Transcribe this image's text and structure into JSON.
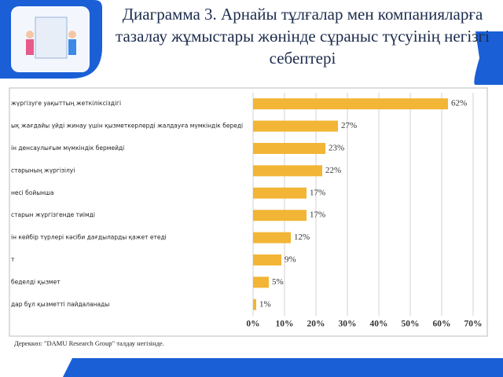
{
  "chart_data": {
    "type": "bar",
    "orientation": "horizontal",
    "title": [
      "Диаграмма 3. Арнайы тұлғалар мен компанияларға",
      "тазалау жұмыстары жөнінде сұраныс түсуінің негізгі",
      "себептері"
    ],
    "categories": [
      "жүргізуге уақыттың жеткіліксіздігі",
      "ық жағдайы үйді жинау үшін қызметкерлерді жалдауға мүмкіндік береді",
      "ін денсаулығым мүмкіндік бермейді",
      "старының жүргізілуі",
      "несі бойынша",
      "старын жүргізгенде тиімді",
      "ін кейбір түрлері кәсіби дағдыларды қажет етеді",
      "т",
      "беделді қызмет",
      "дар бұл қызметті пайдаланады"
    ],
    "values": [
      62,
      27,
      23,
      22,
      17,
      17,
      12,
      9,
      5,
      1
    ],
    "value_labels": [
      "62%",
      "27%",
      "23%",
      "22%",
      "17%",
      "17%",
      "12%",
      "9%",
      "5%",
      "1%"
    ],
    "color": "#f2b535",
    "xlim": [
      0,
      70
    ],
    "xticks": [
      {
        "value": 0,
        "label": "0%"
      },
      {
        "value": 10,
        "label": "10%"
      },
      {
        "value": 20,
        "label": "20%"
      },
      {
        "value": 30,
        "label": "30%"
      },
      {
        "value": 40,
        "label": "40%"
      },
      {
        "value": 50,
        "label": "50%"
      },
      {
        "value": 60,
        "label": "60%"
      },
      {
        "value": 70,
        "label": "70%"
      }
    ],
    "grid": true,
    "source": "Дереккөз: \"DAMU Research Group\" талдау негізінде."
  }
}
